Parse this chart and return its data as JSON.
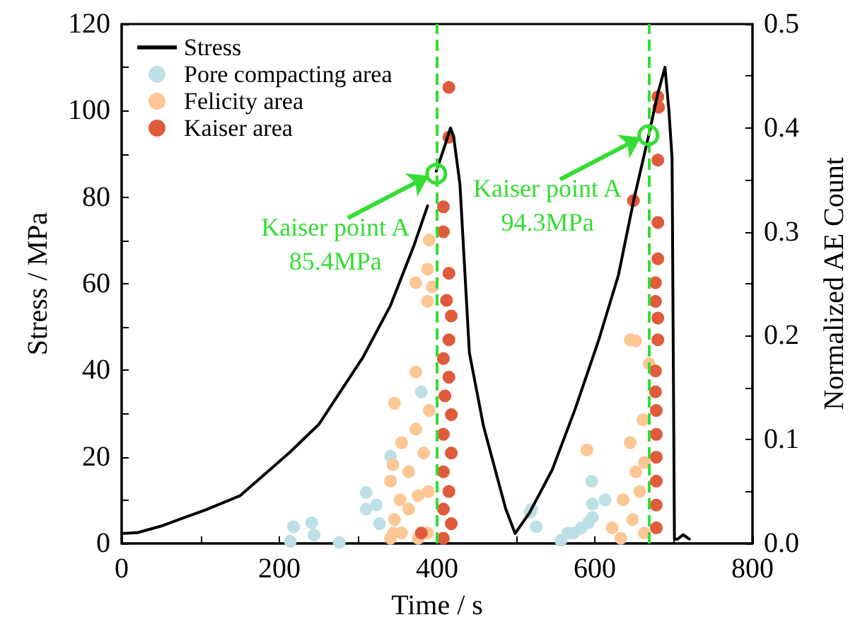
{
  "chart_data": {
    "type": "line",
    "xlabel": "Time / s",
    "ylabel": "Stress / MPa",
    "y2label": "Normalized AE Count",
    "xlim": [
      0,
      800
    ],
    "xticks": [
      0,
      {
        "value": 100,
        "label": null
      },
      200,
      {
        "value": 300,
        "label": null
      },
      400,
      {
        "value": 500,
        "label": null
      },
      600,
      {
        "value": 700,
        "label": null
      },
      800
    ],
    "ylim": [
      0,
      120
    ],
    "yticks": [
      0,
      {
        "value": 10,
        "label": null
      },
      20,
      {
        "value": 30,
        "label": null
      },
      40,
      {
        "value": 50,
        "label": null
      },
      60,
      {
        "value": 70,
        "label": null
      },
      80,
      {
        "value": 90,
        "label": null
      },
      100,
      {
        "value": 110,
        "label": null
      },
      120
    ],
    "y2lim": [
      0,
      0.5
    ],
    "y2ticks": [
      {
        "value": 0,
        "label": "0.0"
      },
      {
        "value": 0.05,
        "label": null
      },
      {
        "value": 0.1,
        "label": "0.1"
      },
      {
        "value": 0.15,
        "label": null
      },
      {
        "value": 0.2,
        "label": "0.2"
      },
      {
        "value": 0.25,
        "label": null
      },
      {
        "value": 0.3,
        "label": "0.3"
      },
      {
        "value": 0.35,
        "label": null
      },
      {
        "value": 0.4,
        "label": "0.4"
      },
      {
        "value": 0.45,
        "label": null
      },
      {
        "value": 0.5,
        "label": "0.5"
      }
    ],
    "legend": "top left",
    "grid": false,
    "line_style": "solid",
    "series": [
      {
        "name": "Stress",
        "type": "line",
        "color": "#000000",
        "marker": "none",
        "x": [
          0,
          20,
          50,
          107,
          150,
          213,
          250,
          306,
          341,
          371,
          388,
          393,
          399,
          410,
          417,
          421,
          429,
          441,
          459,
          487,
          499,
          517,
          546,
          575,
          605,
          630,
          649,
          668,
          680,
          689,
          694,
          698,
          701,
          705,
          712,
          720
        ],
        "values": [
          2.3,
          2.5,
          4,
          7.8,
          11,
          21,
          27.5,
          43,
          55,
          69,
          78,
          null,
          86,
          92,
          96,
          94,
          83,
          44,
          27,
          8,
          2.3,
          7,
          17,
          31,
          47,
          62,
          79,
          94,
          104,
          110,
          100,
          89,
          1,
          1,
          2,
          1
        ]
      },
      {
        "name": "Pore compacting area",
        "type": "scatter",
        "axis": "y2",
        "color": "#bde0e6",
        "marker": "circle",
        "x": [
          214,
          218,
          244,
          241,
          276,
          310,
          310,
          323,
          327,
          341,
          380,
          518,
          520,
          526,
          557,
          566,
          573,
          583,
          592,
          596,
          597,
          597,
          613
        ],
        "values": [
          0.002,
          0.016,
          0.008,
          0.02,
          0.001,
          0.049,
          0.033,
          0.037,
          0.019,
          0.084,
          0.146,
          0.03,
          0.033,
          0.016,
          0.003,
          0.01,
          0.01,
          0.015,
          0.02,
          0.06,
          0.038,
          0.025,
          0.042
        ]
      },
      {
        "name": "Felicity area",
        "type": "scatter",
        "axis": "y2",
        "color": "#fcc795",
        "marker": "circle",
        "x": [
          390,
          373,
          388,
          394,
          388,
          373,
          346,
          355,
          373,
          344,
          341,
          364,
          353,
          376,
          364,
          346,
          355,
          388,
          383,
          390,
          389,
          341,
          376,
          345,
          645,
          652,
          669,
          590,
          645,
          661,
          652,
          636,
          657,
          622,
          648,
          663,
          663,
          633
        ],
        "values": [
          0.292,
          0.251,
          0.264,
          0.247,
          0.233,
          0.165,
          0.135,
          0.097,
          0.11,
          0.076,
          0.06,
          0.069,
          0.042,
          0.046,
          0.033,
          0.023,
          0.01,
          0.01,
          0.087,
          0.128,
          0.05,
          0.005,
          0.005,
          0.01,
          0.196,
          0.195,
          0.173,
          0.09,
          0.097,
          0.119,
          0.069,
          0.042,
          0.05,
          0.015,
          0.023,
          0.078,
          0.01,
          0.005
        ]
      },
      {
        "name": "Kaiser area",
        "type": "scatter",
        "axis": "y2",
        "color": "#e05a3c",
        "marker": "circle",
        "x": [
          415,
          415,
          408,
          408,
          415,
          412,
          418,
          415,
          408,
          415,
          410,
          418,
          408,
          418,
          408,
          415,
          408,
          418,
          408,
          380,
          680,
          681,
          680,
          649,
          680,
          680,
          677,
          677,
          680,
          680,
          677,
          677,
          678,
          678,
          678,
          678,
          678,
          678
        ],
        "values": [
          0.439,
          0.391,
          0.324,
          0.3,
          0.26,
          0.234,
          0.219,
          0.196,
          0.178,
          0.16,
          0.142,
          0.124,
          0.105,
          0.087,
          0.069,
          0.05,
          0.033,
          0.019,
          0.005,
          0.01,
          0.43,
          0.42,
          0.369,
          0.33,
          0.309,
          0.274,
          0.251,
          0.233,
          0.217,
          0.196,
          0.166,
          0.146,
          0.128,
          0.105,
          0.083,
          0.06,
          0.037,
          0.015
        ]
      }
    ],
    "ref_lines": [
      {
        "axis": "x",
        "value": 399,
        "color": "#33dd33",
        "line_style": "dashed"
      },
      {
        "axis": "x",
        "value": 668,
        "color": "#33dd33",
        "line_style": "dashed"
      }
    ],
    "annotations": [
      {
        "text": "Kaiser point A\n85.4MPa",
        "x": 399,
        "y": 85.4
      },
      {
        "text": "Kaiser point A\n94.3MPa",
        "x": 668,
        "y": 94.3
      }
    ]
  }
}
